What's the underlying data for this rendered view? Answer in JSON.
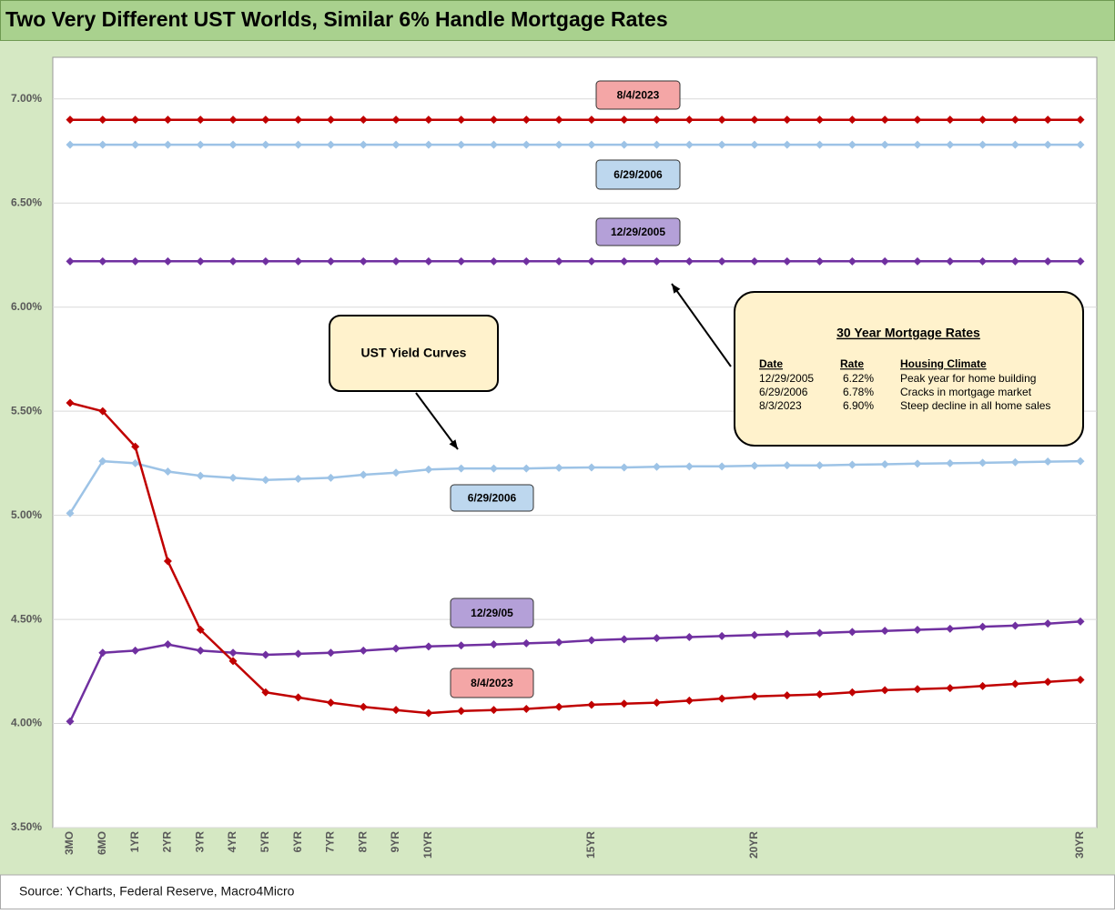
{
  "chart_data": {
    "type": "line",
    "title": "Two Very Different UST Worlds, Similar 6% Handle Mortgage Rates",
    "source": "Source: YCharts, Federal Reserve, Macro4Micro",
    "categories": [
      "3MO",
      "6MO",
      "1YR",
      "2YR",
      "3YR",
      "4YR",
      "5YR",
      "6YR",
      "7YR",
      "8YR",
      "9YR",
      "10YR",
      null,
      null,
      null,
      null,
      "15YR",
      null,
      null,
      null,
      null,
      "20YR",
      null,
      null,
      null,
      null,
      null,
      null,
      null,
      null,
      null,
      "30YR"
    ],
    "ylim": [
      3.5,
      7.2
    ],
    "yticks": [
      {
        "value": 3.5,
        "label": "3.50%"
      },
      {
        "value": 4.0,
        "label": "4.00%"
      },
      {
        "value": 4.5,
        "label": "4.50%"
      },
      {
        "value": 5.0,
        "label": "5.00%"
      },
      {
        "value": 5.5,
        "label": "5.50%"
      },
      {
        "value": 6.0,
        "label": "6.00%"
      },
      {
        "value": 6.5,
        "label": "6.50%"
      },
      {
        "value": 7.0,
        "label": "7.00%"
      }
    ],
    "grid": true,
    "series": [
      {
        "name": "8/4/2023",
        "color": "#c00000",
        "values": [
          6.9,
          6.9,
          6.9,
          6.9,
          6.9,
          6.9,
          6.9,
          6.9,
          6.9,
          6.9,
          6.9,
          6.9,
          6.9,
          6.9,
          6.9,
          6.9,
          6.9,
          6.9,
          6.9,
          6.9,
          6.9,
          6.9,
          6.9,
          6.9,
          6.9,
          6.9,
          6.9,
          6.9,
          6.9,
          6.9,
          6.9,
          6.9
        ]
      },
      {
        "name": "6/29/2006",
        "color": "#9dc3e6",
        "values": [
          6.78,
          6.78,
          6.78,
          6.78,
          6.78,
          6.78,
          6.78,
          6.78,
          6.78,
          6.78,
          6.78,
          6.78,
          6.78,
          6.78,
          6.78,
          6.78,
          6.78,
          6.78,
          6.78,
          6.78,
          6.78,
          6.78,
          6.78,
          6.78,
          6.78,
          6.78,
          6.78,
          6.78,
          6.78,
          6.78,
          6.78,
          6.78
        ]
      },
      {
        "name": "12/29/2005",
        "color": "#7030a0",
        "values": [
          6.22,
          6.22,
          6.22,
          6.22,
          6.22,
          6.22,
          6.22,
          6.22,
          6.22,
          6.22,
          6.22,
          6.22,
          6.22,
          6.22,
          6.22,
          6.22,
          6.22,
          6.22,
          6.22,
          6.22,
          6.22,
          6.22,
          6.22,
          6.22,
          6.22,
          6.22,
          6.22,
          6.22,
          6.22,
          6.22,
          6.22,
          6.22
        ]
      },
      {
        "name": "6/29/2006",
        "color": "#9dc3e6",
        "values": [
          5.01,
          5.26,
          5.25,
          5.21,
          5.19,
          5.18,
          5.17,
          5.175,
          5.18,
          5.195,
          5.205,
          5.22,
          5.225,
          5.225,
          5.225,
          5.228,
          5.23,
          5.23,
          5.233,
          5.235,
          5.235,
          5.238,
          5.24,
          5.24,
          5.243,
          5.245,
          5.248,
          5.25,
          5.252,
          5.255,
          5.258,
          5.26
        ]
      },
      {
        "name": "12/29/05",
        "color": "#7030a0",
        "values": [
          4.01,
          4.34,
          4.35,
          4.38,
          4.35,
          4.34,
          4.33,
          4.335,
          4.34,
          4.35,
          4.36,
          4.37,
          4.375,
          4.38,
          4.385,
          4.39,
          4.4,
          4.405,
          4.41,
          4.415,
          4.42,
          4.425,
          4.43,
          4.435,
          4.44,
          4.445,
          4.45,
          4.455,
          4.465,
          4.47,
          4.48,
          4.49
        ]
      },
      {
        "name": "8/4/2023",
        "color": "#c00000",
        "values": [
          5.54,
          5.5,
          5.33,
          4.78,
          4.45,
          4.3,
          4.15,
          4.125,
          4.1,
          4.08,
          4.065,
          4.05,
          4.06,
          4.065,
          4.07,
          4.08,
          4.09,
          4.095,
          4.1,
          4.11,
          4.12,
          4.13,
          4.135,
          4.14,
          4.15,
          4.16,
          4.165,
          4.17,
          4.18,
          4.19,
          4.2,
          4.21
        ]
      }
    ],
    "annotations": [
      "UST Yield Curves"
    ],
    "mortgage_table": {
      "title": "30 Year Mortgage Rates",
      "header": [
        "Date",
        "Rate",
        "Housing Climate"
      ],
      "rows": [
        [
          "12/29/2005",
          "6.22%",
          "Peak year for home building"
        ],
        [
          "6/29/2006",
          "6.78%",
          "Cracks in mortgage market"
        ],
        [
          "8/3/2023",
          "6.90%",
          "Steep decline in all home sales"
        ]
      ]
    }
  }
}
